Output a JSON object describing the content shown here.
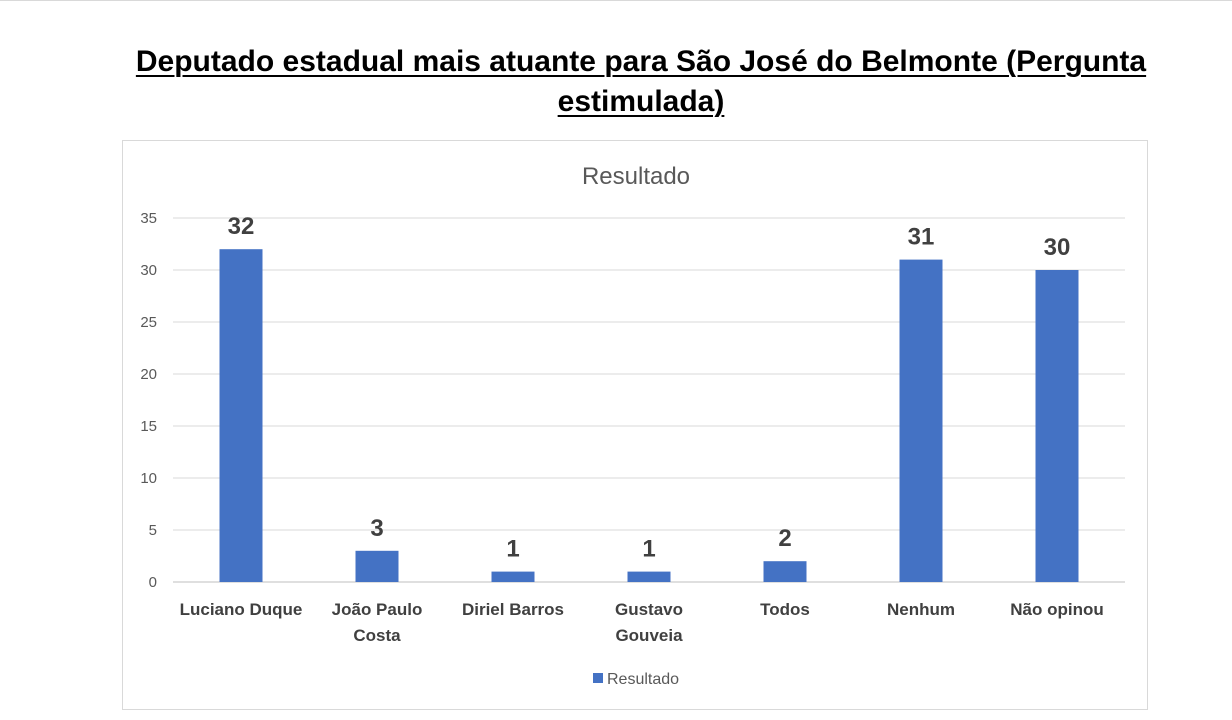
{
  "page": {
    "title": "Deputado estadual mais atuante para São José do Belmonte (Pergunta estimulada)"
  },
  "chart_data": {
    "type": "bar",
    "title": "Resultado",
    "categories": [
      [
        "Luciano Duque"
      ],
      [
        "João Paulo",
        "Costa"
      ],
      [
        "Diriel Barros"
      ],
      [
        "Gustavo",
        "Gouveia"
      ],
      [
        "Todos"
      ],
      [
        "Nenhum"
      ],
      [
        "Não opinou"
      ]
    ],
    "series": [
      {
        "name": "Resultado",
        "values": [
          32,
          3,
          1,
          1,
          2,
          31,
          30
        ],
        "color": "#4472C4"
      }
    ],
    "ylim": [
      0,
      35
    ],
    "yticks": [
      0,
      5,
      10,
      15,
      20,
      25,
      30,
      35
    ],
    "grid": true,
    "legend": "bottom",
    "data_labels": true,
    "xlabel": "",
    "ylabel": ""
  }
}
